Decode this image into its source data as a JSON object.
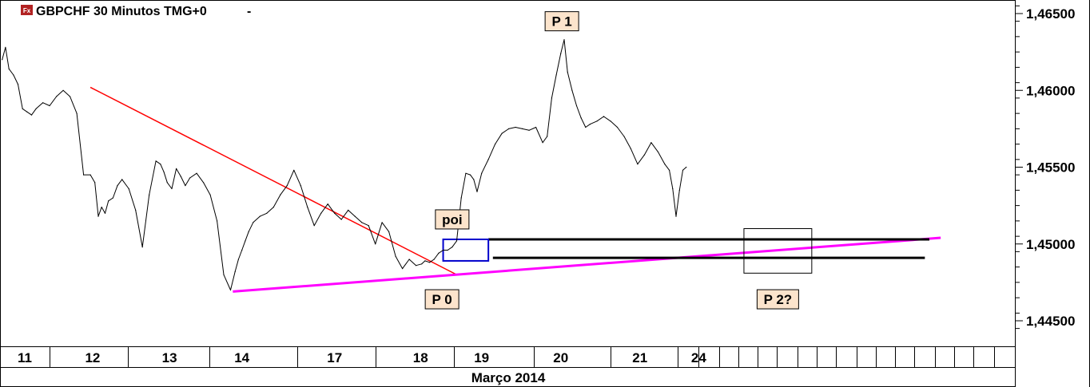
{
  "header": {
    "title": "GBPCHF 30 Minutos TMG+0",
    "menu_glyph": "-",
    "logo_text": "Fx"
  },
  "chart_data": {
    "type": "line",
    "instrument": "GBPCHF",
    "timeframe": "30 Minutos",
    "timezone": "TMG+0",
    "xlabel": "Março 2014",
    "ylim": [
      1.444,
      1.4656
    ],
    "y_ticks": [
      "1,44500",
      "1,45000",
      "1,45500",
      "1,46000",
      "1,46500"
    ],
    "y_tick_values": [
      1.445,
      1.45,
      1.455,
      1.46,
      1.465
    ],
    "x_day_labels": [
      "11",
      "12",
      "13",
      "14",
      "17",
      "18",
      "19",
      "20",
      "21",
      "24"
    ],
    "x_day_positions": [
      0,
      3,
      6.4,
      9.6,
      13.7,
      17.5,
      20.2,
      23.7,
      27.2,
      29.8
    ],
    "x_range": [
      -1,
      43
    ],
    "series": [
      {
        "color": "#000000",
        "x": [
          -1.0,
          -0.85,
          -0.7,
          -0.5,
          -0.3,
          -0.1,
          0.1,
          0.3,
          0.5,
          0.8,
          1.1,
          1.4,
          1.7,
          2.0,
          2.3,
          2.6,
          2.9,
          3.1,
          3.25,
          3.4,
          3.55,
          3.7,
          3.9,
          4.1,
          4.3,
          4.6,
          4.9,
          5.2,
          5.5,
          5.8,
          6.0,
          6.15,
          6.3,
          6.5,
          6.7,
          6.9,
          7.1,
          7.3,
          7.6,
          7.9,
          8.2,
          8.5,
          8.8,
          9.1,
          9.3,
          9.45,
          9.6,
          9.75,
          9.9,
          10.1,
          10.4,
          10.7,
          11.0,
          11.3,
          11.6,
          11.9,
          12.2,
          12.5,
          12.8,
          13.1,
          13.4,
          13.7,
          14.0,
          14.3,
          14.6,
          14.9,
          15.2,
          15.5,
          15.8,
          16.1,
          16.4,
          16.7,
          17.0,
          17.3,
          17.55,
          17.7,
          17.9,
          18.1,
          18.3,
          18.5,
          18.7,
          18.9,
          19.1,
          19.3,
          19.5,
          19.7,
          19.85,
          20.0,
          20.2,
          20.5,
          20.8,
          21.1,
          21.4,
          21.7,
          22.0,
          22.3,
          22.6,
          22.9,
          23.1,
          23.3,
          23.5,
          23.7,
          23.85,
          24.0,
          24.2,
          24.4,
          24.6,
          24.8,
          25.0,
          25.3,
          25.6,
          25.9,
          26.2,
          26.5,
          26.8,
          27.1,
          27.4,
          27.7,
          28.0,
          28.3,
          28.5,
          28.65,
          28.8,
          28.95,
          29.1,
          29.25
        ],
        "values": [
          1.462,
          1.4628,
          1.4614,
          1.461,
          1.4604,
          1.4588,
          1.4586,
          1.4584,
          1.4588,
          1.4592,
          1.459,
          1.4596,
          1.46,
          1.4596,
          1.4585,
          1.4545,
          1.4545,
          1.454,
          1.4518,
          1.4524,
          1.452,
          1.4528,
          1.453,
          1.4538,
          1.4542,
          1.4536,
          1.4522,
          1.4498,
          1.4532,
          1.4554,
          1.4552,
          1.4547,
          1.454,
          1.4536,
          1.4549,
          1.4544,
          1.4538,
          1.4543,
          1.4546,
          1.454,
          1.4532,
          1.4515,
          1.448,
          1.447,
          1.4482,
          1.449,
          1.4496,
          1.4502,
          1.4508,
          1.4514,
          1.4518,
          1.452,
          1.4524,
          1.4532,
          1.4538,
          1.4548,
          1.4538,
          1.4524,
          1.4512,
          1.452,
          1.4526,
          1.452,
          1.4516,
          1.4522,
          1.4518,
          1.4514,
          1.4512,
          1.45,
          1.4514,
          1.4508,
          1.4492,
          1.4484,
          1.449,
          1.4486,
          1.4487,
          1.4489,
          1.4488,
          1.449,
          1.4494,
          1.4496,
          1.4496,
          1.4498,
          1.4502,
          1.453,
          1.4546,
          1.4545,
          1.4542,
          1.4534,
          1.4546,
          1.4555,
          1.4565,
          1.4572,
          1.4575,
          1.4576,
          1.4575,
          1.4574,
          1.4576,
          1.4566,
          1.457,
          1.4595,
          1.461,
          1.4624,
          1.4633,
          1.4612,
          1.46,
          1.459,
          1.4582,
          1.4576,
          1.4578,
          1.458,
          1.4583,
          1.458,
          1.4576,
          1.457,
          1.4562,
          1.4552,
          1.4558,
          1.4566,
          1.456,
          1.4552,
          1.4548,
          1.4536,
          1.4518,
          1.4535,
          1.4548,
          1.455
        ]
      }
    ],
    "trendlines": [
      {
        "name": "resistance",
        "color": "#ff0000",
        "x": [
          2.9,
          19.1
        ],
        "values": [
          1.4602,
          1.448
        ]
      },
      {
        "name": "support",
        "color": "#ff00ff",
        "x": [
          9.2,
          40.5
        ],
        "values": [
          1.4469,
          1.4504
        ]
      },
      {
        "name": "level-upper",
        "color": "#000000",
        "x": [
          20.5,
          40.0
        ],
        "values": [
          1.4503,
          1.4503
        ]
      },
      {
        "name": "level-lower",
        "color": "#000000",
        "x": [
          20.7,
          39.8
        ],
        "values": [
          1.4491,
          1.4491
        ]
      }
    ],
    "boxes": [
      {
        "name": "poi-box",
        "color": "#0000cc",
        "x": [
          18.5,
          20.5
        ],
        "values": [
          1.4503,
          1.4489
        ]
      },
      {
        "name": "p2-box",
        "color": "#000000",
        "x": [
          31.8,
          34.8
        ],
        "values": [
          1.451,
          1.4481
        ]
      }
    ],
    "annotations": [
      {
        "text": "P 1",
        "x": 23.75,
        "value": 1.4645
      },
      {
        "text": "poi",
        "x": 18.9,
        "value": 1.4516
      },
      {
        "text": "P 0",
        "x": 18.45,
        "value": 1.4464
      },
      {
        "text": "P 2?",
        "x": 33.3,
        "value": 1.4464
      }
    ],
    "legend": "none",
    "grid": false
  },
  "colors": {
    "background": "#ffffff",
    "label_fill": "#fce4cc",
    "axis": "#000000"
  }
}
